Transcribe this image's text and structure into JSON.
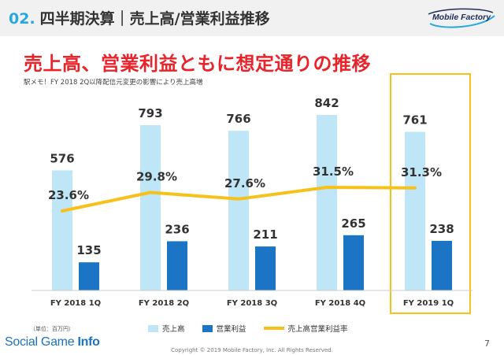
{
  "header": {
    "number": "02.",
    "title": "四半期決算｜売上高/営業利益推移",
    "logo": "Mobile Factory"
  },
  "headline": "売上高、営業利益ともに想定通りの推移",
  "note": "駅メモ！FY 2018 2Q以降配信元変更の影響により売上高増",
  "unit_note": "（単位：百万円）",
  "legend": {
    "revenue": "売上高",
    "operating_income": "営業利益",
    "margin": "売上高営業利益率"
  },
  "colors": {
    "revenue": "#bfe6f7",
    "operating_income": "#1b74c4",
    "margin": "#f6c21a",
    "highlight": "#f6c21a",
    "headline": "#e8232a",
    "accent": "#27a9df"
  },
  "chart_data": {
    "type": "bar",
    "categories": [
      "FY 2018 1Q",
      "FY 2018 2Q",
      "FY 2018 3Q",
      "FY 2018 4Q",
      "FY 2019 1Q"
    ],
    "series": [
      {
        "name": "売上高",
        "type": "bar",
        "values": [
          576,
          793,
          766,
          842,
          761
        ]
      },
      {
        "name": "営業利益",
        "type": "bar",
        "values": [
          135,
          236,
          211,
          265,
          238
        ]
      },
      {
        "name": "売上高営業利益率",
        "type": "line",
        "values": [
          23.6,
          29.8,
          27.6,
          31.5,
          31.3
        ],
        "labels": [
          "23.6%",
          "29.8%",
          "27.6%",
          "31.5%",
          "31.3%"
        ]
      }
    ],
    "highlighted_category": "FY 2019 1Q",
    "legend_position": "bottom"
  },
  "footer": {
    "source_light": "Social Game ",
    "source_bold": "Info",
    "copyright": "Copyright © 2019 Mobile Factory, Inc. All Rights Reserved.",
    "page": "7"
  }
}
